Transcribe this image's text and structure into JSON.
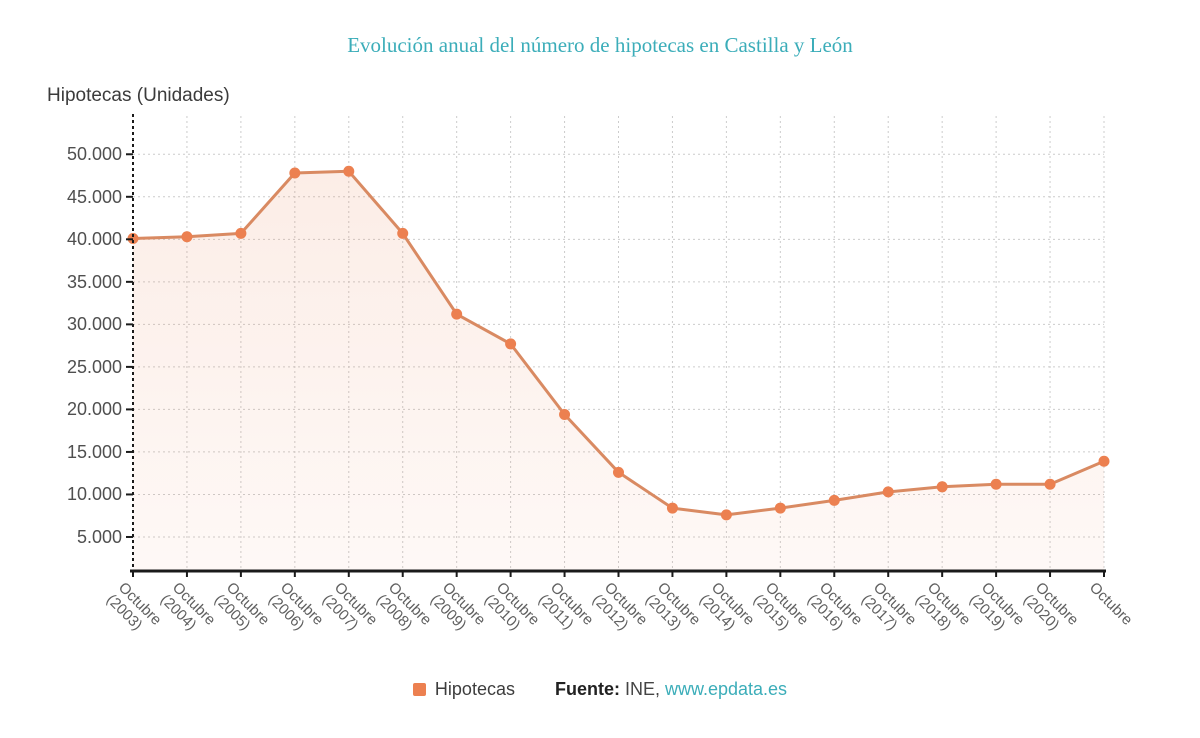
{
  "title": "Evolución anual del número de hipotecas en Castilla y León",
  "y_axis_title": "Hipotecas (Unidades)",
  "legend": {
    "label": "Hipotecas"
  },
  "footer": {
    "source_label": "Fuente:",
    "source_value": " INE, ",
    "link": "www.epdata.es"
  },
  "colors": {
    "title_teal": "#3badb9",
    "link_teal": "#3badb9",
    "line": "#d98a62",
    "marker": "#ec8050",
    "area_top": "rgba(233,128,82,0.14)",
    "area_bottom": "rgba(233,128,82,0.05)",
    "grid": "#cccccc",
    "axis": "#1a1a1a",
    "legend_swatch": "#ec8050"
  },
  "chart_data": {
    "type": "area",
    "title": "Evolución anual del número de hipotecas en Castilla y León",
    "xlabel": "",
    "ylabel": "Hipotecas (Unidades)",
    "legend_position": "bottom",
    "grid": true,
    "categories": [
      "Octubre (2003)",
      "Octubre (2004)",
      "Octubre (2005)",
      "Octubre (2006)",
      "Octubre (2007)",
      "Octubre (2008)",
      "Octubre (2009)",
      "Octubre (2010)",
      "Octubre (2011)",
      "Octubre (2012)",
      "Octubre (2013)",
      "Octubre (2014)",
      "Octubre (2015)",
      "Octubre (2016)",
      "Octubre (2017)",
      "Octubre (2018)",
      "Octubre (2019)",
      "Octubre (2020)",
      "Octubre"
    ],
    "series": [
      {
        "name": "Hipotecas",
        "values": [
          40100,
          40300,
          40700,
          47800,
          48000,
          40700,
          31200,
          27700,
          19400,
          12600,
          8400,
          7600,
          8400,
          9300,
          10300,
          10900,
          11200,
          11200,
          13900
        ]
      }
    ],
    "y_axis": {
      "min": 1000,
      "max": 54500,
      "tick_values": [
        5000,
        10000,
        15000,
        20000,
        25000,
        30000,
        35000,
        40000,
        45000,
        50000
      ],
      "tick_labels": [
        "5.000",
        "10.000",
        "15.000",
        "20.000",
        "25.000",
        "30.000",
        "35.000",
        "40.000",
        "45.000",
        "50.000"
      ]
    }
  }
}
